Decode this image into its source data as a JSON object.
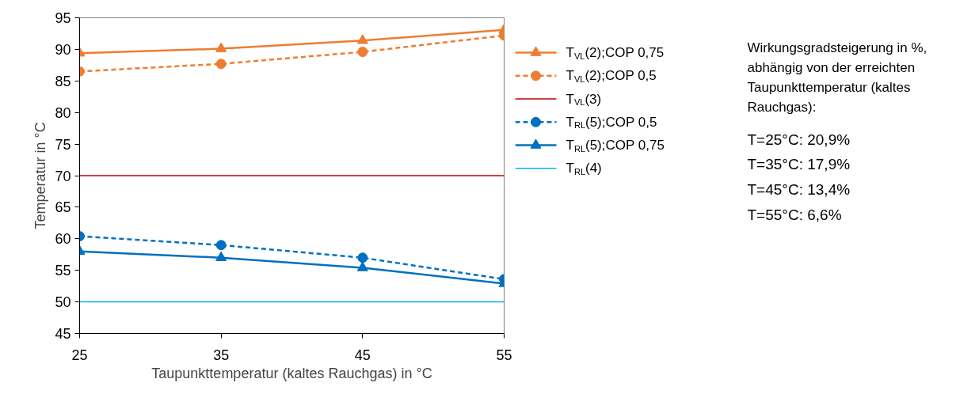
{
  "chart_data": {
    "type": "line",
    "xlabel": "Taupunkttemperatur (kaltes Rauchgas) in °C",
    "ylabel": "Temperatur in °C",
    "x": [
      25,
      35,
      45,
      55
    ],
    "xlim": [
      25,
      55
    ],
    "xticks": [
      25,
      35,
      45,
      55
    ],
    "ylim": [
      45,
      95
    ],
    "yticks": [
      45,
      50,
      55,
      60,
      65,
      70,
      75,
      80,
      85,
      90,
      95
    ],
    "grid": false,
    "legend": "right",
    "series": [
      {
        "name": "T$_{VL}$(2);COP 0,75",
        "color": "#ed7d31",
        "marker": "triangle",
        "line_style": "solid",
        "values": [
          89.4,
          90.1,
          91.4,
          93.1
        ]
      },
      {
        "name": "T$_{VL}$(2);COP 0,5",
        "color": "#ed7d31",
        "marker": "circle",
        "line_style": "dashed",
        "values": [
          86.5,
          87.7,
          89.6,
          92.2
        ]
      },
      {
        "name": "T$_{VL}$(3)",
        "color": "#c00000",
        "marker": "none",
        "line_style": "solid",
        "values": [
          70,
          70,
          70,
          70
        ]
      },
      {
        "name": "T$_{RL}$(5);COP 0,5",
        "color": "#0070c0",
        "marker": "circle",
        "line_style": "dashed",
        "values": [
          60.4,
          59.0,
          57.0,
          53.6
        ]
      },
      {
        "name": "T$_{RL}$(5);COP 0,75",
        "color": "#0070c0",
        "marker": "triangle",
        "line_style": "solid",
        "values": [
          58.0,
          57.0,
          55.4,
          52.9
        ]
      },
      {
        "name": "T$_{RL}$(4)",
        "color": "#00b0f0",
        "marker": "none",
        "line_style": "solid",
        "values": [
          50,
          50,
          50,
          50
        ]
      }
    ],
    "annotations": [
      "Wirkungsgradsteigerung in %, abhängig von der erreichten Taupunkttemperatur (kaltes Rauchgas):",
      "T=25°C: 20,9%",
      "T=35°C: 17,9%",
      "T=45°C: 13,4%",
      "T=55°C: 6,6%"
    ]
  }
}
